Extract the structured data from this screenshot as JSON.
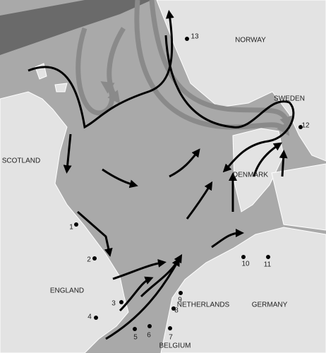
{
  "regions": [
    {
      "label": "NORWAY"
    },
    {
      "label": "SWEDEN"
    },
    {
      "label": "SCOTLAND"
    },
    {
      "label": "DENMARK"
    },
    {
      "label": "ENGLAND"
    },
    {
      "label": "NETHERLANDS"
    },
    {
      "label": "GERMANY"
    },
    {
      "label": "BELGIUM"
    }
  ],
  "stations": [
    {
      "label": "1"
    },
    {
      "label": "2"
    },
    {
      "label": "3"
    },
    {
      "label": "4"
    },
    {
      "label": "5"
    },
    {
      "label": "6"
    },
    {
      "label": "7"
    },
    {
      "label": "8"
    },
    {
      "label": "9"
    },
    {
      "label": "10"
    },
    {
      "label": "11"
    },
    {
      "label": "12"
    },
    {
      "label": "13"
    }
  ]
}
